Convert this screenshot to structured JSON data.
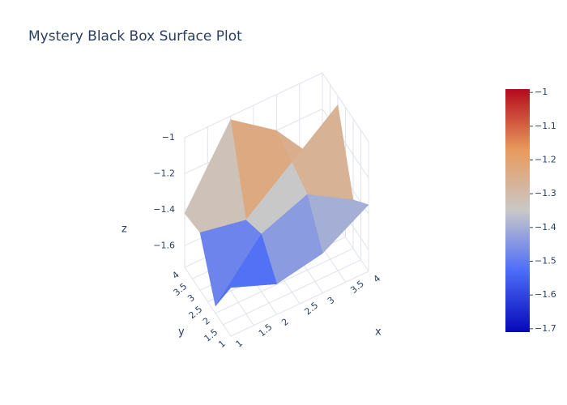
{
  "chart_data": {
    "type": "surface",
    "title": "Mystery Black Box Surface Plot",
    "x": [
      1,
      2,
      3,
      4
    ],
    "y": [
      1,
      2,
      3,
      4
    ],
    "z": [
      [
        -1.45,
        -1.55,
        -1.5,
        -1.35
      ],
      [
        -1.68,
        -1.4,
        -1.3,
        -1.45
      ],
      [
        -1.4,
        -1.45,
        -1.25,
        -1.05
      ],
      [
        -1.42,
        -1.02,
        -1.2,
        -1.5
      ]
    ],
    "xlabel": "x",
    "ylabel": "y",
    "zlabel": "z",
    "xlim": [
      1,
      4
    ],
    "ylim": [
      1,
      4
    ],
    "zlim": [
      -1.72,
      -1.0
    ],
    "xticks": [
      1,
      1.5,
      2,
      2.5,
      3,
      3.5,
      4
    ],
    "yticks": [
      1,
      1.5,
      2,
      2.5,
      3,
      3.5,
      4
    ],
    "zticks": [
      {
        "value": -1.6,
        "label": "−1.6"
      },
      {
        "value": -1.4,
        "label": "−1.4"
      },
      {
        "value": -1.2,
        "label": "−1.2"
      },
      {
        "value": -1,
        "label": "−1"
      }
    ],
    "colorscale": [
      "#0508b8",
      "#4b6cf8",
      "#c8c8c8",
      "#e89a5e",
      "#b40a1c"
    ],
    "clim": [
      -1.71,
      -0.99
    ],
    "colorbar_ticks": [
      {
        "value": -1.7,
        "label": "−1.7"
      },
      {
        "value": -1.6,
        "label": "−1.6"
      },
      {
        "value": -1.5,
        "label": "−1.5"
      },
      {
        "value": -1.4,
        "label": "−1.4"
      },
      {
        "value": -1.3,
        "label": "−1.3"
      },
      {
        "value": -1.2,
        "label": "−1.2"
      },
      {
        "value": -1.1,
        "label": "−1.1"
      },
      {
        "value": -1,
        "label": "−1"
      }
    ],
    "grid": true
  }
}
